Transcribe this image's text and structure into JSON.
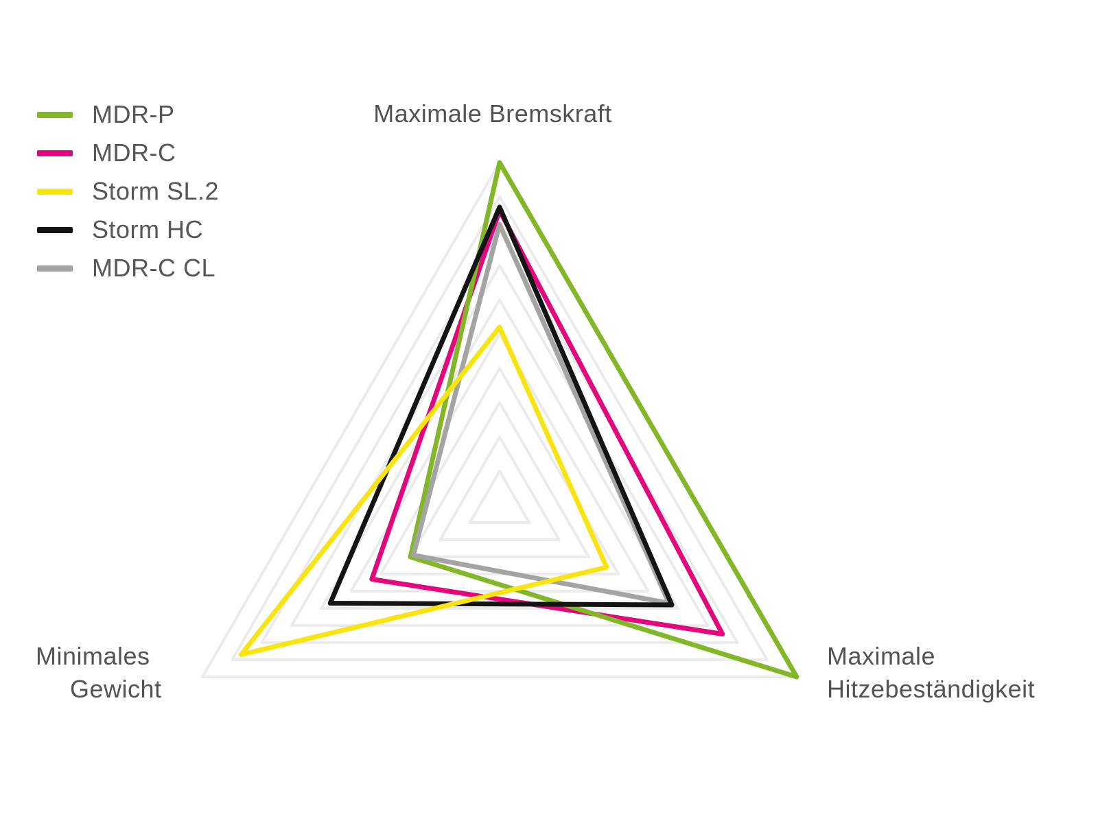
{
  "legend": {
    "items": [
      {
        "label": "MDR-P",
        "color": "#84b629"
      },
      {
        "label": "MDR-C",
        "color": "#e2077c"
      },
      {
        "label": "Storm SL.2",
        "color": "#f8e411"
      },
      {
        "label": "Storm HC",
        "color": "#141414"
      },
      {
        "label": "MDR-C CL",
        "color": "#a4a4a3"
      }
    ]
  },
  "axis_labels": {
    "top": "Maximale Bremskraft",
    "bottom_right_line1": "Maximale",
    "bottom_right_line2": "Hitzebeständigkeit",
    "bottom_left_line1": "Minimales",
    "bottom_left_line2": "Gewicht"
  },
  "chart_data": {
    "type": "radar",
    "axes": [
      "Maximale Bremskraft",
      "Maximale Hitzebeständigkeit",
      "Minimales Gewicht"
    ],
    "scale": {
      "min": 0,
      "max": 10,
      "rings": 10
    },
    "grid_color": "#ebebeb",
    "legend_position": "top-left",
    "series": [
      {
        "name": "MDR-P",
        "color": "#84b629",
        "values": [
          10,
          10,
          3.0
        ]
      },
      {
        "name": "MDR-C",
        "color": "#e2077c",
        "values": [
          8.6,
          7.5,
          4.3
        ]
      },
      {
        "name": "Storm SL.2",
        "color": "#f8e411",
        "values": [
          5.2,
          3.6,
          8.7
        ]
      },
      {
        "name": "Storm HC",
        "color": "#141414",
        "values": [
          8.7,
          5.8,
          5.7
        ]
      },
      {
        "name": "MDR-C CL",
        "color": "#a4a4a3",
        "values": [
          8.2,
          5.7,
          2.9
        ]
      }
    ],
    "draw_order": [
      "MDR-C",
      "MDR-P",
      "MDR-C CL",
      "Storm HC",
      "Storm SL.2"
    ]
  }
}
